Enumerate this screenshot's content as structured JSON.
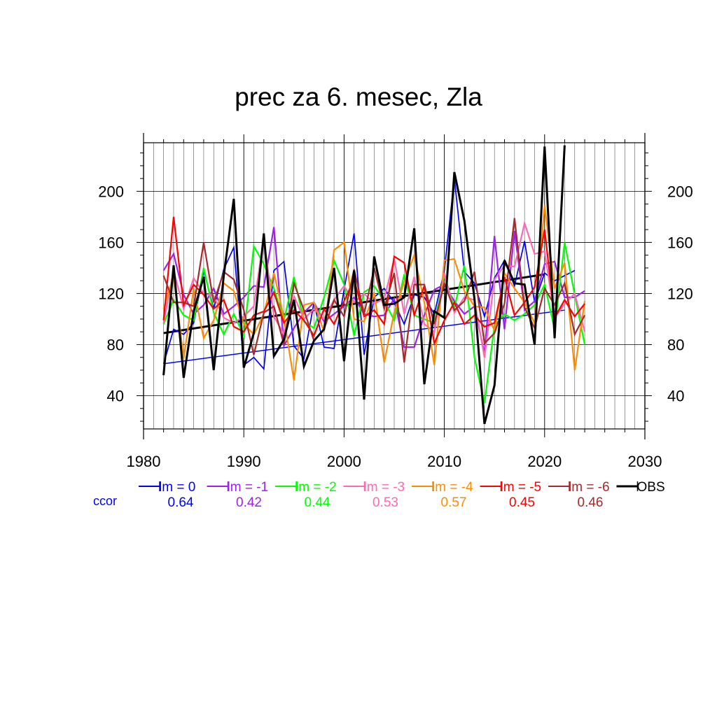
{
  "chart_data": {
    "type": "line",
    "title": "prec za 6. mesec, Zla",
    "xlim": [
      1980,
      2030
    ],
    "ylim": [
      14,
      238
    ],
    "x_ticks": [
      1980,
      1990,
      2000,
      2010,
      2020,
      2030
    ],
    "y_ticks": [
      40,
      80,
      120,
      160,
      200
    ],
    "grid": true,
    "legend_position": "below plot",
    "x_start": 1982,
    "series": [
      {
        "name": "lm = 0",
        "color": "#0000ff",
        "ccor": "0.64",
        "values": [
          65,
          92,
          88,
          97,
          138,
          108,
          139,
          156,
          64,
          70,
          61,
          138,
          145,
          79,
          69,
          113,
          78,
          77,
          123,
          167,
          72,
          117,
          124,
          113,
          96,
          119,
          117,
          104,
          138,
          210,
          137,
          128,
          102,
          132,
          146,
          126,
          161,
          113,
          136,
          130,
          134,
          138
        ]
      },
      {
        "name": "lm = -1",
        "color": "#a020f0",
        "ccor": "0.42",
        "values": [
          138,
          151,
          119,
          104,
          111,
          124,
          104,
          110,
          117,
          126,
          125,
          172,
          79,
          93,
          105,
          113,
          98,
          104,
          110,
          117,
          104,
          102,
          103,
          116,
          78,
          78,
          103,
          123,
          127,
          114,
          104,
          110,
          73,
          165,
          92,
          169,
          107,
          114,
          143,
          145,
          117,
          117,
          122
        ]
      },
      {
        "name": "lm = -2",
        "color": "#00ff00",
        "ccor": "0.44",
        "values": [
          96,
          115,
          103,
          99,
          140,
          105,
          88,
          104,
          87,
          157,
          143,
          124,
          99,
          133,
          98,
          93,
          117,
          146,
          127,
          87,
          121,
          126,
          114,
          99,
          135,
          103,
          100,
          97,
          134,
          109,
          142,
          70,
          34,
          95,
          104,
          99,
          104,
          111,
          127,
          92,
          160,
          119,
          80
        ]
      },
      {
        "name": "lm = -3",
        "color": "#ff69b4",
        "ccor": "0.53",
        "values": [
          97,
          138,
          108,
          132,
          120,
          118,
          101,
          97,
          102,
          110,
          164,
          102,
          88,
          118,
          100,
          108,
          100,
          115,
          126,
          113,
          120,
          112,
          116,
          147,
          104,
          133,
          96,
          90,
          136,
          105,
          117,
          115,
          70,
          131,
          142,
          141,
          175,
          151,
          153,
          101,
          112,
          120,
          90
        ]
      },
      {
        "name": "lm = -4",
        "color": "#ff8c00",
        "ccor": "0.57",
        "values": [
          108,
          134,
          69,
          124,
          85,
          99,
          128,
          122,
          96,
          88,
          104,
          136,
          101,
          52,
          111,
          113,
          90,
          154,
          160,
          100,
          98,
          121,
          66,
          105,
          129,
          150,
          113,
          64,
          146,
          147,
          122,
          110,
          109,
          91,
          136,
          124,
          113,
          97,
          189,
          124,
          144,
          60,
          114
        ]
      },
      {
        "name": "lm = -5",
        "color": "#ff0000",
        "ccor": "0.45",
        "values": [
          99,
          180,
          111,
          127,
          119,
          108,
          115,
          94,
          90,
          103,
          106,
          121,
          97,
          107,
          99,
          87,
          108,
          96,
          114,
          131,
          102,
          107,
          96,
          149,
          144,
          103,
          126,
          81,
          99,
          113,
          96,
          103,
          94,
          97,
          133,
          103,
          113,
          125,
          170,
          101,
          115,
          102,
          112
        ]
      },
      {
        "name": "lm = -6",
        "color": "#a52a2a",
        "ccor": "0.46",
        "values": [
          134,
          113,
          113,
          110,
          160,
          113,
          137,
          131,
          107,
          72,
          105,
          110,
          80,
          128,
          107,
          83,
          92,
          115,
          102,
          139,
          104,
          140,
          108,
          136,
          66,
          127,
          127,
          96,
          128,
          107,
          114,
          137,
          81,
          89,
          112,
          179,
          109,
          93,
          124,
          111,
          128,
          88,
          103
        ]
      },
      {
        "name": "OBS",
        "color": "#000000",
        "ccor": "",
        "values": [
          56,
          142,
          54,
          106,
          133,
          60,
          134,
          194,
          62,
          89,
          167,
          71,
          84,
          115,
          63,
          83,
          92,
          140,
          67,
          138,
          37,
          149,
          111,
          112,
          117,
          171,
          49,
          106,
          101,
          215,
          177,
          116,
          18,
          48,
          146,
          128,
          127,
          80,
          235,
          85,
          236
        ]
      }
    ],
    "trend_lines": [
      {
        "series": "lm = 0",
        "color": "#0000ff",
        "x": [
          1982,
          2022
        ],
        "y": [
          65,
          107
        ]
      },
      {
        "series": "OBS",
        "color": "#000000",
        "x": [
          1982,
          2020
        ],
        "y": [
          89,
          135
        ]
      }
    ],
    "ccor_label": "ccor",
    "ccor_label_color": "#0000ff"
  }
}
